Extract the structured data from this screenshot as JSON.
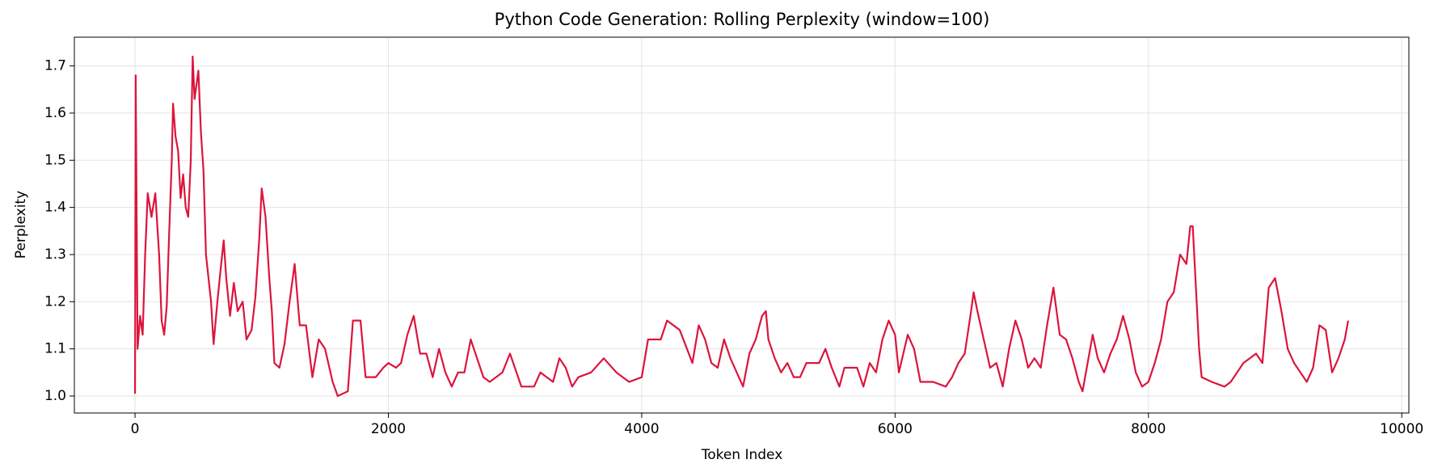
{
  "chart_data": {
    "type": "line",
    "title": "Python Code Generation: Rolling Perplexity (window=100)",
    "xlabel": "Token Index",
    "ylabel": "Perplexity",
    "xlim": [
      -479,
      10056
    ],
    "ylim": [
      0.964,
      1.761
    ],
    "xticks": [
      0,
      2000,
      4000,
      6000,
      8000,
      10000
    ],
    "yticks": [
      {
        "value": 1,
        "label": "1.0"
      },
      1.1,
      1.2,
      1.3,
      1.4,
      1.5,
      1.6,
      1.7
    ],
    "grid": true,
    "series": [
      {
        "color": "#dc143c",
        "x": [
          0,
          5,
          20,
          40,
          60,
          80,
          100,
          130,
          160,
          190,
          210,
          230,
          250,
          270,
          290,
          300,
          320,
          340,
          360,
          380,
          400,
          420,
          440,
          455,
          470,
          500,
          520,
          540,
          560,
          580,
          600,
          620,
          650,
          680,
          700,
          720,
          750,
          780,
          810,
          850,
          880,
          920,
          950,
          980,
          1000,
          1030,
          1060,
          1080,
          1100,
          1140,
          1180,
          1220,
          1260,
          1300,
          1350,
          1400,
          1450,
          1500,
          1560,
          1600,
          1680,
          1720,
          1780,
          1820,
          1900,
          1960,
          2000,
          2060,
          2100,
          2150,
          2200,
          2250,
          2300,
          2350,
          2400,
          2450,
          2500,
          2550,
          2600,
          2650,
          2700,
          2750,
          2800,
          2900,
          2960,
          3050,
          3150,
          3200,
          3300,
          3350,
          3400,
          3450,
          3500,
          3600,
          3700,
          3800,
          3900,
          4000,
          4050,
          4150,
          4200,
          4300,
          4400,
          4450,
          4500,
          4550,
          4600,
          4650,
          4700,
          4750,
          4800,
          4850,
          4900,
          4950,
          4980,
          5000,
          5050,
          5100,
          5150,
          5200,
          5250,
          5300,
          5400,
          5450,
          5500,
          5560,
          5600,
          5700,
          5750,
          5800,
          5850,
          5900,
          5950,
          6000,
          6030,
          6100,
          6150,
          6200,
          6300,
          6400,
          6450,
          6500,
          6550,
          6600,
          6620,
          6650,
          6700,
          6750,
          6800,
          6850,
          6900,
          6950,
          7000,
          7050,
          7100,
          7150,
          7200,
          7250,
          7300,
          7350,
          7400,
          7450,
          7480,
          7520,
          7560,
          7600,
          7650,
          7700,
          7750,
          7800,
          7850,
          7900,
          7950,
          8000,
          8050,
          8100,
          8150,
          8200,
          8250,
          8300,
          8330,
          8350,
          8400,
          8420,
          8500,
          8600,
          8650,
          8700,
          8750,
          8800,
          8850,
          8900,
          8950,
          9000,
          9050,
          9100,
          9150,
          9200,
          9250,
          9300,
          9350,
          9400,
          9450,
          9500,
          9550,
          9577
        ],
        "values": [
          1.005,
          1.68,
          1.1,
          1.17,
          1.13,
          1.3,
          1.43,
          1.38,
          1.43,
          1.3,
          1.16,
          1.13,
          1.19,
          1.35,
          1.5,
          1.62,
          1.55,
          1.52,
          1.42,
          1.47,
          1.4,
          1.38,
          1.5,
          1.72,
          1.63,
          1.69,
          1.56,
          1.48,
          1.3,
          1.25,
          1.2,
          1.11,
          1.2,
          1.28,
          1.33,
          1.25,
          1.17,
          1.24,
          1.18,
          1.2,
          1.12,
          1.14,
          1.21,
          1.33,
          1.44,
          1.38,
          1.25,
          1.18,
          1.07,
          1.06,
          1.11,
          1.2,
          1.28,
          1.15,
          1.15,
          1.04,
          1.12,
          1.1,
          1.03,
          1.0,
          1.01,
          1.16,
          1.16,
          1.04,
          1.04,
          1.06,
          1.07,
          1.06,
          1.07,
          1.13,
          1.17,
          1.09,
          1.09,
          1.04,
          1.1,
          1.05,
          1.02,
          1.05,
          1.05,
          1.12,
          1.08,
          1.04,
          1.03,
          1.05,
          1.09,
          1.02,
          1.02,
          1.05,
          1.03,
          1.08,
          1.06,
          1.02,
          1.04,
          1.05,
          1.08,
          1.05,
          1.03,
          1.04,
          1.12,
          1.12,
          1.16,
          1.14,
          1.07,
          1.15,
          1.12,
          1.07,
          1.06,
          1.12,
          1.08,
          1.05,
          1.02,
          1.09,
          1.12,
          1.17,
          1.18,
          1.12,
          1.08,
          1.05,
          1.07,
          1.04,
          1.04,
          1.07,
          1.07,
          1.1,
          1.06,
          1.02,
          1.06,
          1.06,
          1.02,
          1.07,
          1.05,
          1.12,
          1.16,
          1.13,
          1.05,
          1.13,
          1.1,
          1.03,
          1.03,
          1.02,
          1.04,
          1.07,
          1.09,
          1.18,
          1.22,
          1.18,
          1.12,
          1.06,
          1.07,
          1.02,
          1.1,
          1.16,
          1.12,
          1.06,
          1.08,
          1.06,
          1.15,
          1.23,
          1.13,
          1.12,
          1.08,
          1.03,
          1.01,
          1.07,
          1.13,
          1.08,
          1.05,
          1.09,
          1.12,
          1.17,
          1.12,
          1.05,
          1.02,
          1.03,
          1.07,
          1.12,
          1.2,
          1.22,
          1.3,
          1.28,
          1.36,
          1.36,
          1.1,
          1.04,
          1.03,
          1.02,
          1.03,
          1.05,
          1.07,
          1.08,
          1.09,
          1.07,
          1.23,
          1.25,
          1.18,
          1.1,
          1.07,
          1.05,
          1.03,
          1.06,
          1.15,
          1.14,
          1.05,
          1.08,
          1.12,
          1.16
        ]
      }
    ]
  }
}
